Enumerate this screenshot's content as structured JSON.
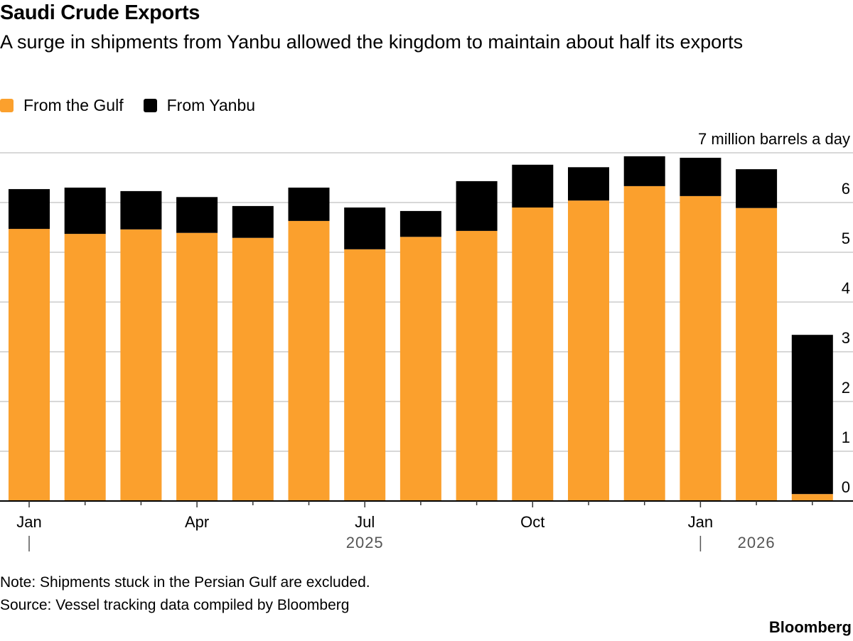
{
  "colors": {
    "gulf": "#FBA02D",
    "yanbu": "#000000",
    "grid": "#cccccc",
    "axis": "#000000"
  },
  "chart_data": {
    "type": "bar",
    "stacked": true,
    "title": "Saudi Crude Exports",
    "subtitle": "A surge in shipments from Yanbu allowed the kingdom to maintain about half its exports",
    "unit_label": "7 million barrels a day",
    "ylabel": "million barrels a day",
    "ylim": [
      0,
      7
    ],
    "yticks": [
      0,
      1,
      2,
      3,
      4,
      5,
      6,
      7
    ],
    "ytick_labels": [
      "0",
      "1",
      "2",
      "3",
      "4",
      "5",
      "6",
      "7 million barrels a day"
    ],
    "grid": true,
    "legend_position": "top-left",
    "categories": [
      "Jan 2025",
      "Feb 2025",
      "Mar 2025",
      "Apr 2025",
      "May 2025",
      "Jun 2025",
      "Jul 2025",
      "Aug 2025",
      "Sep 2025",
      "Oct 2025",
      "Nov 2025",
      "Dec 2025",
      "Jan 2026",
      "Feb 2026",
      "Mar 2026"
    ],
    "xtick_labels": [
      {
        "index": 0,
        "label": "Jan"
      },
      {
        "index": 3,
        "label": "Apr"
      },
      {
        "index": 6,
        "label": "Jul"
      },
      {
        "index": 9,
        "label": "Oct"
      },
      {
        "index": 12,
        "label": "Jan"
      }
    ],
    "year_labels": [
      {
        "index": 6,
        "label": "2025",
        "marker_index": 0
      },
      {
        "index": 13,
        "label": "2026",
        "marker_index": 12
      }
    ],
    "series": [
      {
        "name": "From the Gulf",
        "color": "#FBA02D",
        "values": [
          5.47,
          5.37,
          5.46,
          5.39,
          5.29,
          5.63,
          5.06,
          5.31,
          5.43,
          5.9,
          6.04,
          6.33,
          6.13,
          5.89,
          0.14
        ]
      },
      {
        "name": "From Yanbu",
        "color": "#000000",
        "values": [
          0.8,
          0.93,
          0.77,
          0.72,
          0.64,
          0.67,
          0.84,
          0.52,
          1.0,
          0.86,
          0.67,
          0.6,
          0.77,
          0.78,
          3.2
        ]
      }
    ]
  },
  "header": {
    "title": "Saudi Crude Exports",
    "subtitle": "A surge in shipments from Yanbu allowed the kingdom to maintain about half its exports"
  },
  "legend": [
    {
      "label": "From the Gulf",
      "color": "#FBA02D"
    },
    {
      "label": "From Yanbu",
      "color": "#000000"
    }
  ],
  "footer": {
    "note": "Note: Shipments stuck in the Persian Gulf are excluded.",
    "source": "Source: Vessel tracking data compiled by Bloomberg",
    "brand": "Bloomberg"
  }
}
